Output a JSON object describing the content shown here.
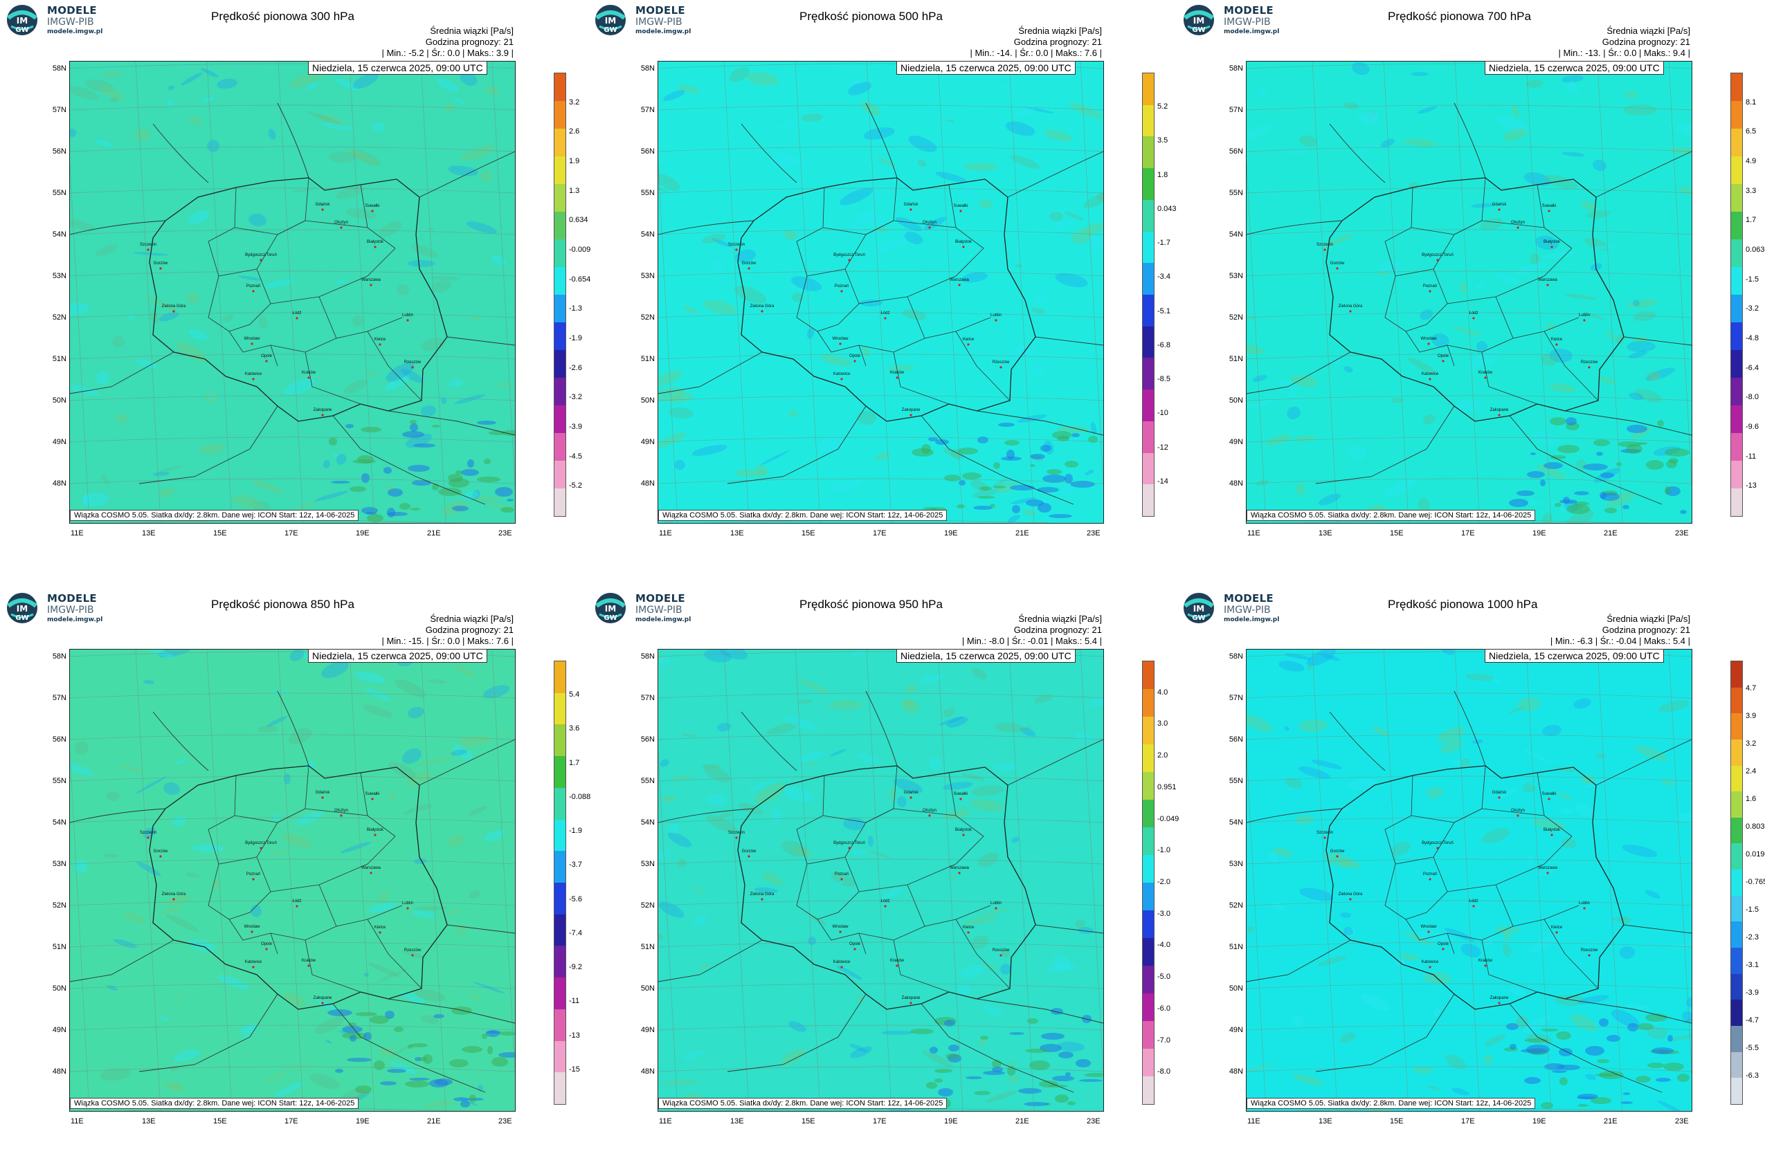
{
  "brand": {
    "line1": "MODELE",
    "line2": "IMGW-PIB",
    "url": "modele.imgw.pl",
    "logo_text": "IMGW"
  },
  "common": {
    "subtitle": "Średnia wiązki [Pa/s]",
    "forecast_hour": "Godzina prognozy: 21",
    "date": "Niedziela, 15 czerwca 2025, 09:00 UTC",
    "credits": "Wiązka COSMO 5.05. Siatka dx/dy: 2.8km. Dane wej: ICON Start: 12z, 14-06-2025",
    "lat_labels": [
      "58N",
      "57N",
      "56N",
      "55N",
      "54N",
      "53N",
      "52N",
      "51N",
      "50N",
      "49N",
      "48N"
    ],
    "lon_labels": [
      "11E",
      "13E",
      "15E",
      "17E",
      "19E",
      "21E",
      "23E"
    ]
  },
  "panels": [
    {
      "title": "Prędkość pionowa 300 hPa",
      "stats": "| Min.: -5.2 | Śr.: 0.0 | Maks.: 3.9 |",
      "colorbar": [
        "3.2",
        "2.6",
        "1.9",
        "1.3",
        "0.634",
        "-0.009",
        "-0.654",
        "-1.3",
        "-1.9",
        "-2.6",
        "-3.2",
        "-3.9",
        "-4.5",
        "-5.2"
      ]
    },
    {
      "title": "Prędkość pionowa 500 hPa",
      "stats": "| Min.: -14. | Śr.: 0.0 | Maks.: 7.6 |",
      "colorbar": [
        "5.2",
        "3.5",
        "1.8",
        "0.043",
        "-1.7",
        "-3.4",
        "-5.1",
        "-6.8",
        "-8.5",
        "-10",
        "-12",
        "-14"
      ]
    },
    {
      "title": "Prędkość pionowa 700 hPa",
      "stats": "| Min.: -13. | Śr.: 0.0 | Maks.: 9.4 |",
      "colorbar": [
        "8.1",
        "6.5",
        "4.9",
        "3.3",
        "1.7",
        "0.063",
        "-1.5",
        "-3.2",
        "-4.8",
        "-6.4",
        "-8.0",
        "-9.6",
        "-11",
        "-13"
      ]
    },
    {
      "title": "Prędkość pionowa 850 hPa",
      "stats": "| Min.: -15. | Śr.: 0.0 | Maks.: 7.6 |",
      "colorbar": [
        "5.4",
        "3.6",
        "1.7",
        "-0.088",
        "-1.9",
        "-3.7",
        "-5.6",
        "-7.4",
        "-9.2",
        "-11",
        "-13",
        "-15"
      ]
    },
    {
      "title": "Prędkość pionowa 950 hPa",
      "stats": "| Min.: -8.0 | Śr.: -0.01 | Maks.: 5.4 |",
      "colorbar": [
        "4.0",
        "3.0",
        "2.0",
        "0.951",
        "-0.049",
        "-1.0",
        "-2.0",
        "-3.0",
        "-4.0",
        "-5.0",
        "-6.0",
        "-7.0",
        "-8.0"
      ]
    },
    {
      "title": "Prędkość pionowa 1000 hPa",
      "stats": "| Min.: -6.3 | Śr.: -0.04 | Maks.: 5.4 |",
      "colorbar": [
        "4.7",
        "3.9",
        "3.2",
        "2.4",
        "1.6",
        "0.803",
        "0.019",
        "-0.765",
        "-1.5",
        "-2.3",
        "-3.1",
        "-3.9",
        "-4.7",
        "-5.5",
        "-6.3"
      ]
    }
  ],
  "cities": [
    "Gdańsk",
    "Olsztyn",
    "Suwałki",
    "Białystok",
    "Szczecin",
    "Bydgoszcz/Toruń",
    "Gorzów",
    "Poznań",
    "Warszawa",
    "Zielona Góra",
    "Łódź",
    "Lublin",
    "Wrocław",
    "Kielce",
    "Opole",
    "Rzeszów",
    "Katowice",
    "Kraków",
    "Zakopane"
  ],
  "colors": {
    "base_300": "#3cdcb4",
    "base_500": "#20eae0",
    "base_700": "#20e8d8",
    "base_850": "#46dca8",
    "base_950": "#30e0c8",
    "base_1000": "#18e6e6"
  }
}
